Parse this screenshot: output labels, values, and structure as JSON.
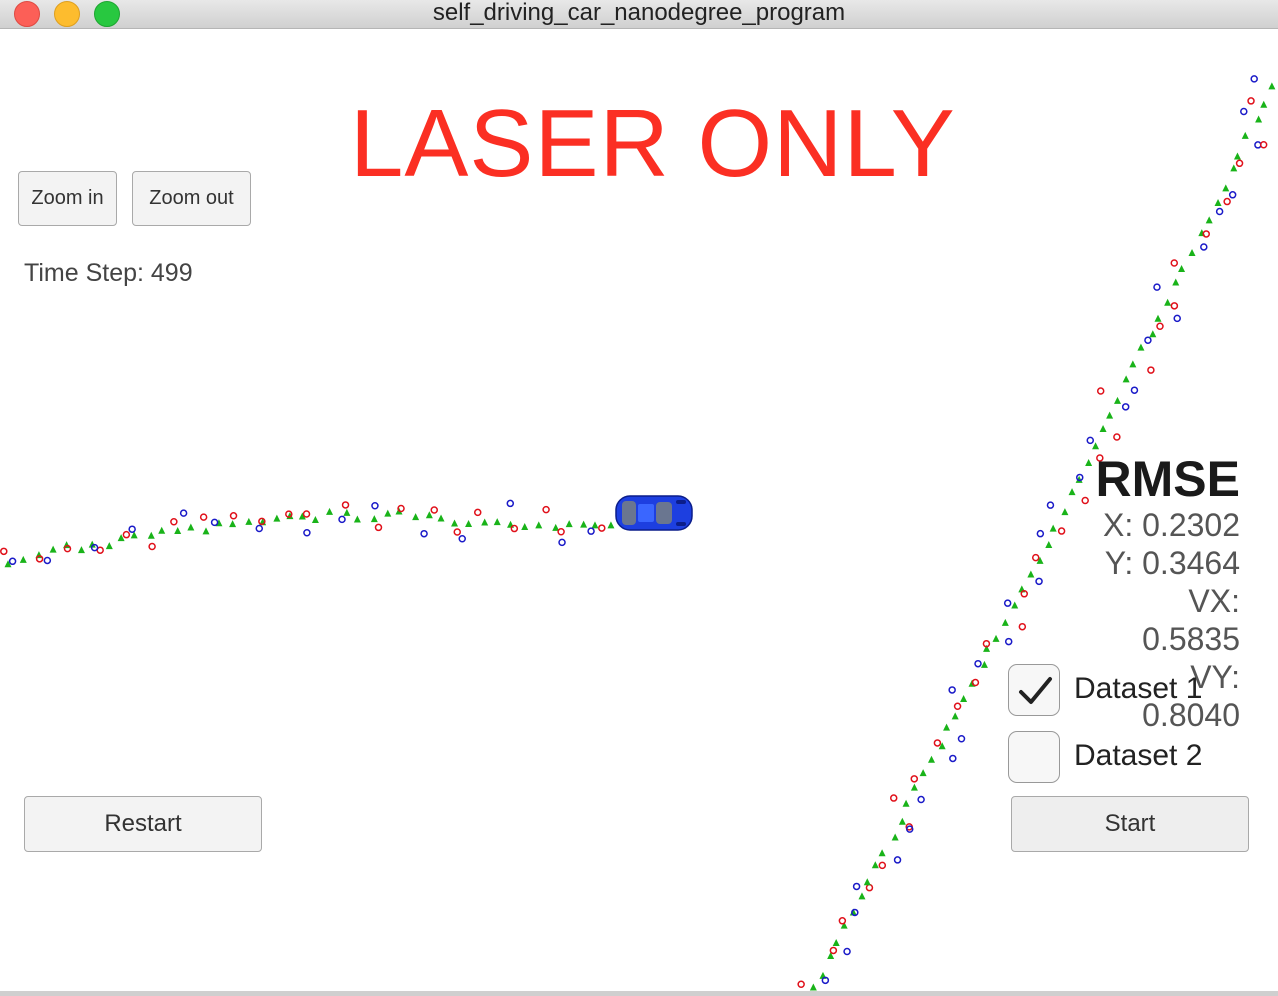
{
  "window": {
    "title": "self_driving_car_nanodegree_program"
  },
  "headline": "LASER ONLY",
  "toolbar": {
    "zoom_in_label": "Zoom in",
    "zoom_out_label": "Zoom out"
  },
  "timestep": {
    "label": "Time Step: 499"
  },
  "rmse": {
    "title": "RMSE",
    "x": "X: 0.2302",
    "y": "Y: 0.3464",
    "vx": "VX: 0.5835",
    "vy": "VY: 0.8040"
  },
  "datasets": [
    {
      "label": "Dataset 1",
      "checked": true
    },
    {
      "label": "Dataset 2",
      "checked": false
    }
  ],
  "controls": {
    "restart_label": "Restart",
    "start_label": "Start"
  },
  "colors": {
    "headline": "#fb2f23",
    "lidar": "#e0101a",
    "radar": "#1a1ac8",
    "estimate": "#19b319",
    "car": "#1d3fe0"
  },
  "icons": {
    "car": "car-icon",
    "check": "checkmark-icon"
  }
}
